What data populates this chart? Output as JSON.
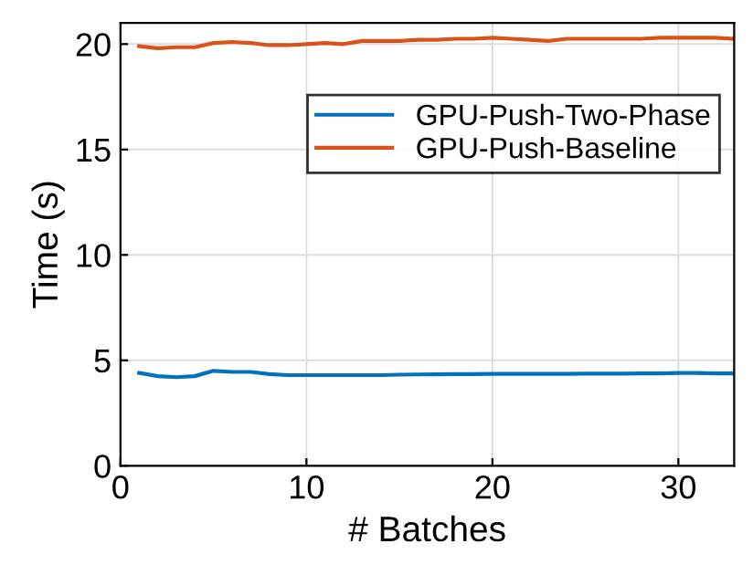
{
  "chart_data": {
    "type": "line",
    "xlabel": "# Batches",
    "ylabel": "Time (s)",
    "x": [
      1,
      2,
      3,
      4,
      5,
      6,
      7,
      8,
      9,
      10,
      11,
      12,
      13,
      14,
      15,
      16,
      17,
      18,
      19,
      20,
      21,
      22,
      23,
      24,
      25,
      26,
      27,
      28,
      29,
      30,
      31,
      32,
      33
    ],
    "series": [
      {
        "name": "GPU-Push-Two-Phase",
        "color": "#0072bd",
        "values": [
          4.4,
          4.25,
          4.2,
          4.25,
          4.5,
          4.45,
          4.45,
          4.35,
          4.3,
          4.3,
          4.3,
          4.3,
          4.3,
          4.3,
          4.32,
          4.33,
          4.34,
          4.35,
          4.35,
          4.36,
          4.36,
          4.36,
          4.36,
          4.36,
          4.37,
          4.37,
          4.37,
          4.38,
          4.38,
          4.4,
          4.4,
          4.38,
          4.38
        ]
      },
      {
        "name": "GPU-Push-Baseline",
        "color": "#d95319",
        "values": [
          19.9,
          19.8,
          19.85,
          19.85,
          20.05,
          20.1,
          20.05,
          19.95,
          19.95,
          20.0,
          20.05,
          20.0,
          20.15,
          20.15,
          20.15,
          20.2,
          20.2,
          20.25,
          20.25,
          20.3,
          20.25,
          20.2,
          20.15,
          20.25,
          20.25,
          20.25,
          20.25,
          20.25,
          20.3,
          20.3,
          20.3,
          20.3,
          20.25
        ]
      }
    ],
    "xlim": [
      0,
      33
    ],
    "xticks": [
      0,
      10,
      20,
      30
    ],
    "ylim": [
      0,
      21
    ],
    "yticks": [
      0,
      5,
      10,
      15,
      20
    ],
    "grid": true,
    "legend": "top right",
    "line_style": "solid",
    "marker": "none"
  }
}
